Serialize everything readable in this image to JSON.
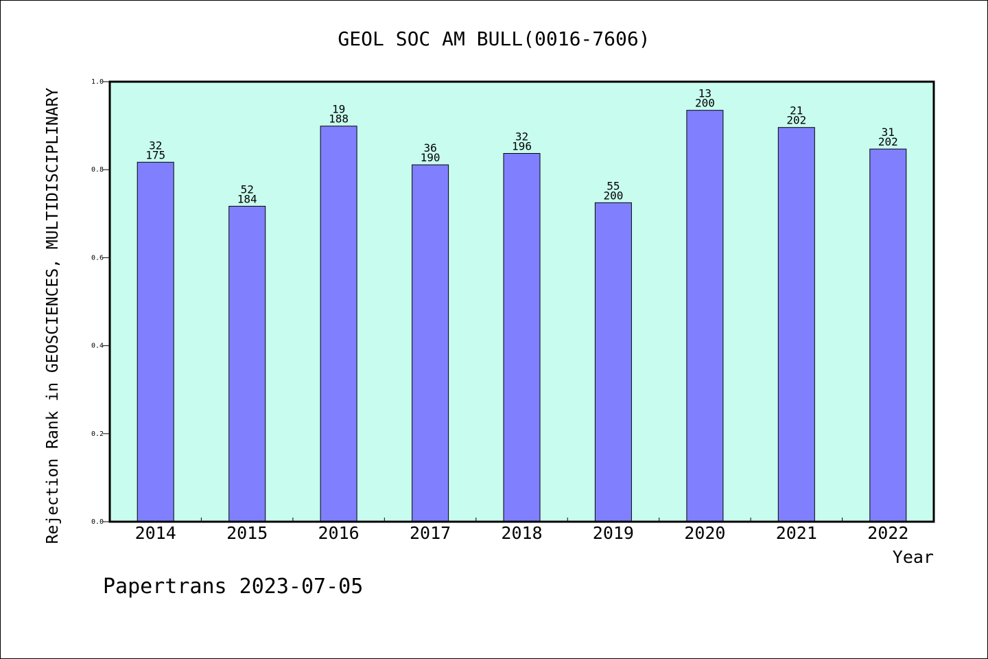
{
  "chart_data": {
    "type": "bar",
    "title": "GEOL SOC AM BULL(0016-7606)",
    "xlabel": "Year",
    "ylabel": "Rejection Rank in GEOSCIENCES, MULTIDISCIPLINARY",
    "ylim": [
      0.0,
      1.0
    ],
    "yticks": [
      "0.0",
      "0.2",
      "0.4",
      "0.6",
      "0.8",
      "1.0"
    ],
    "categories": [
      "2014",
      "2015",
      "2016",
      "2017",
      "2018",
      "2019",
      "2020",
      "2021",
      "2022"
    ],
    "values": [
      0.817,
      0.717,
      0.899,
      0.811,
      0.837,
      0.725,
      0.935,
      0.896,
      0.847
    ],
    "rank_labels": [
      "32",
      "52",
      "19",
      "36",
      "32",
      "55",
      "13",
      "21",
      "31"
    ],
    "total_labels": [
      "175",
      "184",
      "188",
      "190",
      "196",
      "200",
      "200",
      "202",
      "202"
    ],
    "grid": false,
    "legend": "none",
    "colors": {
      "plot_background": "#c8fcee",
      "bar_fill": "#8080ff",
      "bar_stroke": "#000000",
      "axis": "#000000",
      "text": "#000000"
    }
  },
  "footer": {
    "watermark": "Papertrans 2023-07-05"
  }
}
